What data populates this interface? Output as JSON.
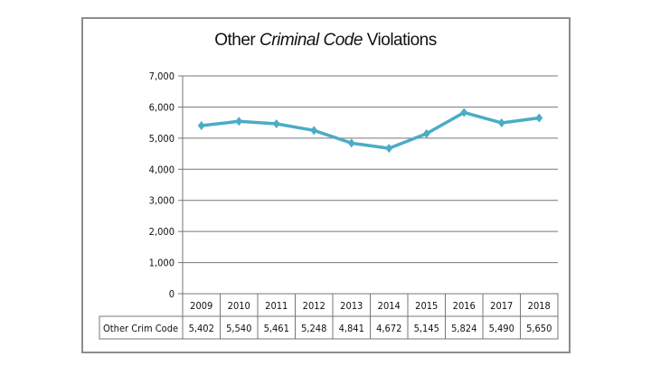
{
  "chart_data": {
    "type": "line",
    "title_parts": {
      "before": "Other ",
      "italic": "Criminal Code",
      "after": " Violations"
    },
    "categories": [
      "2009",
      "2010",
      "2011",
      "2012",
      "2013",
      "2014",
      "2015",
      "2016",
      "2017",
      "2018"
    ],
    "series": [
      {
        "name": "Other Crim Code",
        "values": [
          5402,
          5540,
          5461,
          5248,
          4841,
          4672,
          5145,
          5824,
          5490,
          5650
        ],
        "labels": [
          "5,402",
          "5,540",
          "5,461",
          "5,248",
          "4,841",
          "4,672",
          "5,145",
          "5,824",
          "5,490",
          "5,650"
        ]
      }
    ],
    "yticks": [
      "0",
      "1,000",
      "2,000",
      "3,000",
      "4,000",
      "5,000",
      "6,000",
      "7,000"
    ],
    "ylim": [
      0,
      7000
    ],
    "grid": true,
    "legend": "data table below chart",
    "line_color": "#4bacc6"
  }
}
